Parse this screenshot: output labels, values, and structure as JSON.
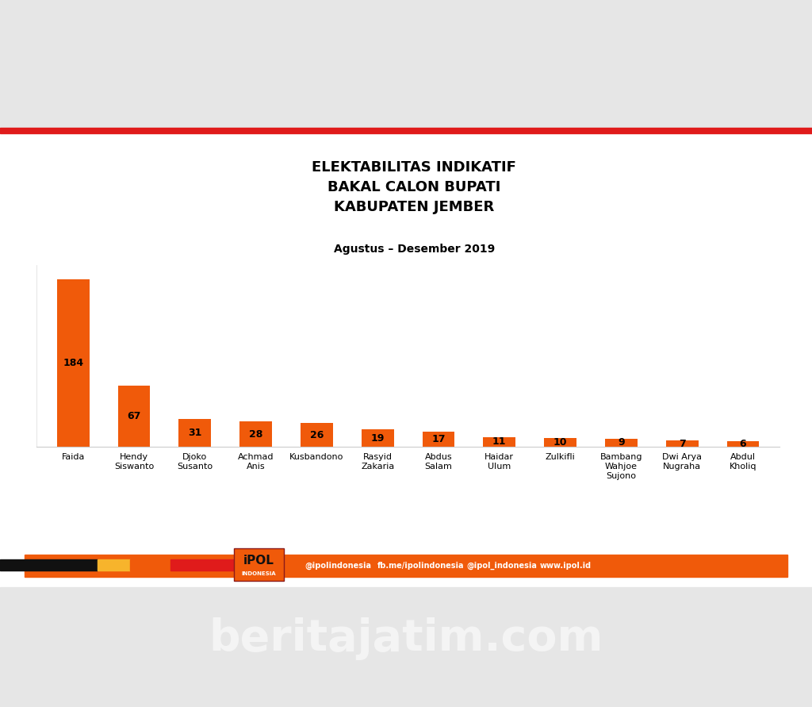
{
  "chart_data": {
    "type": "bar",
    "title": "ELEKTABILITAS INDIKATIF\nBAKAL CALON BUPATI\nKABUPATEN JEMBER",
    "subtitle": "Agustus – Desember 2019",
    "categories": [
      "Faida",
      "Hendy Siswanto",
      "Djoko Susanto",
      "Achmad Anis",
      "Kusbandono",
      "Rasyid Zakaria",
      "Abdus Salam",
      "Haidar Ulum",
      "Zulkifli",
      "Bambang Wahjoe Sujono",
      "Dwi Arya Nugraha",
      "Abdul Kholiq"
    ],
    "values": [
      184,
      67,
      31,
      28,
      26,
      19,
      17,
      11,
      10,
      9,
      7,
      6
    ],
    "color": "#f05a0a",
    "ylim": [
      0,
      200
    ],
    "yticks": [],
    "grid": false,
    "data_labels": true,
    "tick_labels": "x"
  },
  "footer": {
    "logo": "iPOL",
    "logo_sub": "INDONESIA",
    "social": [
      "@ipolindonesia",
      "fb.me/ipolindonesia",
      "@ipol_indonesia",
      "www.ipol.id"
    ]
  },
  "watermark": "beritajatim.com"
}
